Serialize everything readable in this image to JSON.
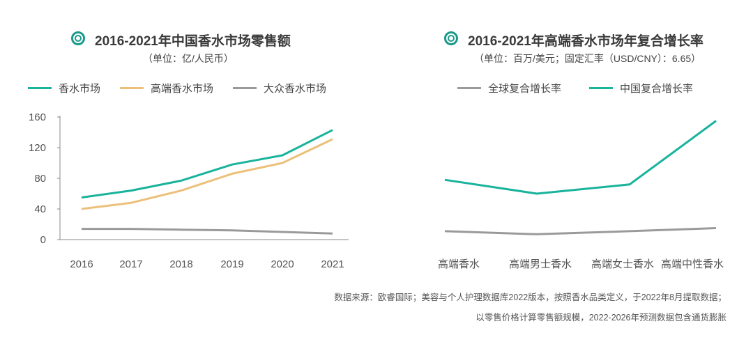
{
  "colors": {
    "teal": "#19b39b",
    "orange": "#ecc07a",
    "gray": "#9a9a9a",
    "axis": "#777777",
    "icon": "#1a9a8a"
  },
  "icons": {
    "title_marker": "double-ring-icon"
  },
  "chart_data": [
    {
      "type": "line",
      "title": "2016-2021年中国香水市场零售额",
      "subtitle": "（单位：亿/人民币）",
      "categories": [
        "2016",
        "2017",
        "2018",
        "2019",
        "2020",
        "2021"
      ],
      "ylim": [
        0,
        160
      ],
      "yticks": [
        "0",
        "40",
        "80",
        "120",
        "160"
      ],
      "legend_position": "top",
      "grid": false,
      "series": [
        {
          "name": "香水市场",
          "color": "#19b39b",
          "values": [
            55,
            64,
            77,
            98,
            110,
            143
          ]
        },
        {
          "name": "高端香水市场",
          "color": "#ecc07a",
          "values": [
            40,
            48,
            64,
            86,
            100,
            131
          ]
        },
        {
          "name": "大众香水市场",
          "color": "#9a9a9a",
          "values": [
            14,
            14,
            13,
            12,
            10,
            8
          ]
        }
      ]
    },
    {
      "type": "line",
      "title": "2016-2021年高端香水市场年复合增长率",
      "subtitle": "（单位：百万/美元；固定汇率（USD/CNY）：6.65）",
      "categories": [
        "高端香水",
        "高端男士香水",
        "高端女士香水",
        "高端中性香水"
      ],
      "legend_position": "top",
      "grid": false,
      "series": [
        {
          "name": "全球复合增长率",
          "color": "#9a9a9a",
          "values": [
            11,
            7,
            11,
            15
          ]
        },
        {
          "name": "中国复合增长率",
          "color": "#19b39b",
          "values": [
            78,
            60,
            72,
            155
          ]
        }
      ]
    }
  ],
  "footnote": {
    "line1": "数据来源：欧睿国际；美容与个人护理数据库2022版本，按照香水品类定义，于2022年8月提取数据；",
    "line2": "以零售价格计算零售额规模，2022-2026年预测数据包含通货膨胀"
  }
}
